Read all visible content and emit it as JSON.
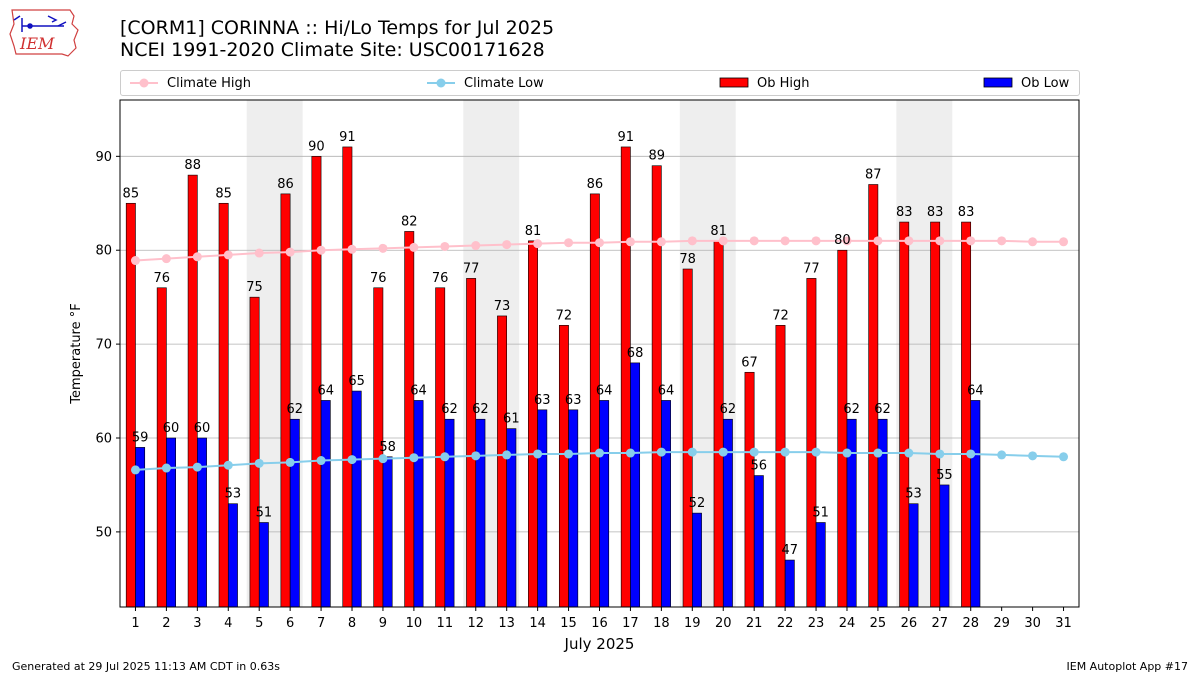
{
  "header": {
    "logo_text": "IEM",
    "title_line1": "[CORM1] CORINNA :: Hi/Lo Temps for Jul 2025",
    "title_line2": "NCEI 1991-2020 Climate Site: USC00171628"
  },
  "footer": {
    "generated": "Generated at 29 Jul 2025 11:13 AM CDT in 0.63s",
    "app": "IEM Autoplot App #17"
  },
  "legend": {
    "climate_high": "Climate High",
    "climate_low": "Climate Low",
    "ob_high": "Ob High",
    "ob_low": "Ob Low"
  },
  "colors": {
    "ob_high": "#ff0000",
    "ob_low": "#0000ff",
    "climate_high": "#ffc0cb",
    "climate_low": "#87ceeb",
    "weekend_shade": "#eeeeee",
    "grid": "#b0b0b0"
  },
  "chart_data": {
    "type": "bar",
    "xlabel": "July 2025",
    "ylabel": "Temperature °F",
    "ylim": [
      42,
      96
    ],
    "yticks": [
      50,
      60,
      70,
      80,
      90
    ],
    "days": [
      1,
      2,
      3,
      4,
      5,
      6,
      7,
      8,
      9,
      10,
      11,
      12,
      13,
      14,
      15,
      16,
      17,
      18,
      19,
      20,
      21,
      22,
      23,
      24,
      25,
      26,
      27,
      28,
      29,
      30,
      31
    ],
    "weekend_spans": [
      [
        5,
        6
      ],
      [
        12,
        13
      ],
      [
        19,
        20
      ],
      [
        26,
        27
      ]
    ],
    "grid": "horizontal",
    "legend_position": "top",
    "series": [
      {
        "name": "Ob High",
        "kind": "bar",
        "values": [
          85,
          76,
          88,
          85,
          75,
          86,
          90,
          91,
          76,
          82,
          76,
          77,
          73,
          81,
          72,
          86,
          91,
          89,
          78,
          81,
          67,
          72,
          77,
          80,
          87,
          83,
          83,
          83
        ]
      },
      {
        "name": "Ob Low",
        "kind": "bar",
        "values": [
          59,
          60,
          60,
          53,
          51,
          62,
          64,
          65,
          58,
          64,
          62,
          62,
          61,
          63,
          63,
          64,
          68,
          64,
          52,
          62,
          56,
          47,
          51,
          62,
          62,
          53,
          55,
          64
        ]
      },
      {
        "name": "Climate High",
        "kind": "line",
        "values": [
          78.9,
          79.1,
          79.3,
          79.5,
          79.7,
          79.8,
          80.0,
          80.1,
          80.2,
          80.3,
          80.4,
          80.5,
          80.6,
          80.7,
          80.8,
          80.8,
          80.9,
          80.9,
          81.0,
          81.0,
          81.0,
          81.0,
          81.0,
          81.0,
          81.0,
          81.0,
          81.0,
          81.0,
          81.0,
          80.9,
          80.9
        ]
      },
      {
        "name": "Climate Low",
        "kind": "line",
        "values": [
          56.6,
          56.8,
          56.9,
          57.1,
          57.3,
          57.4,
          57.6,
          57.7,
          57.8,
          57.9,
          58.0,
          58.1,
          58.2,
          58.3,
          58.3,
          58.4,
          58.4,
          58.5,
          58.5,
          58.5,
          58.5,
          58.5,
          58.5,
          58.4,
          58.4,
          58.4,
          58.3,
          58.3,
          58.2,
          58.1,
          58.0
        ]
      }
    ]
  }
}
